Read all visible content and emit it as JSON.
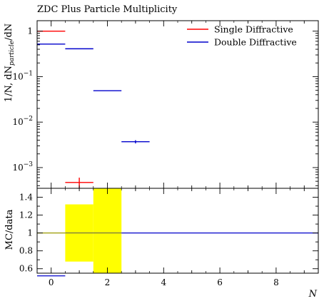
{
  "chart_data": [
    {
      "type": "line",
      "panel": "main",
      "title": "ZDC Plus Particle Multiplicity",
      "ylabel_parts": {
        "pre": "1/N, dN",
        "sub": "particle",
        "post": "/dN"
      },
      "ylabel": "1/N, dN_particle/dN",
      "y_scale": "log",
      "ylim": [
        0.00035,
        1.7
      ],
      "xlim": [
        -0.5,
        9.5
      ],
      "y_ticks": [
        1,
        0.1,
        0.01,
        0.001
      ],
      "y_tick_labels": [
        {
          "base": "1",
          "exp": ""
        },
        {
          "base": "10",
          "exp": "−1"
        },
        {
          "base": "10",
          "exp": "−2"
        },
        {
          "base": "10",
          "exp": "−3"
        }
      ],
      "legend_position": "top-right",
      "series": [
        {
          "name": "Single Diffractive",
          "color": "#ff0000",
          "points": [
            {
              "x": 0,
              "xlow": -0.5,
              "xhigh": 0.5,
              "y": 1.0,
              "err": 0
            },
            {
              "x": 1,
              "xlow": 0.5,
              "xhigh": 1.5,
              "y": 0.00047,
              "err": 0.00013
            }
          ]
        },
        {
          "name": "Double Diffractive",
          "color": "#0000cc",
          "points": [
            {
              "x": 0,
              "xlow": -0.5,
              "xhigh": 0.5,
              "y": 0.52,
              "err": 0
            },
            {
              "x": 1,
              "xlow": 0.5,
              "xhigh": 1.5,
              "y": 0.41,
              "err": 0
            },
            {
              "x": 2,
              "xlow": 1.5,
              "xhigh": 2.5,
              "y": 0.049,
              "err": 0
            },
            {
              "x": 3,
              "xlow": 2.5,
              "xhigh": 3.5,
              "y": 0.0037,
              "err": 0.0003
            }
          ]
        }
      ]
    },
    {
      "type": "line",
      "panel": "ratio",
      "ylabel": "MC/data",
      "xlabel": "N",
      "ylim": [
        0.55,
        1.5
      ],
      "xlim": [
        -0.5,
        9.5
      ],
      "y_ticks": [
        0.6,
        0.8,
        1.0,
        1.2,
        1.4
      ],
      "y_tick_labels": [
        "0.6",
        "0.8",
        "1",
        "1.2",
        "1.4"
      ],
      "x_ticks": [
        0,
        2,
        4,
        6,
        8
      ],
      "x_tick_labels": [
        "0",
        "2",
        "4",
        "6",
        "8"
      ],
      "reference_line": 1.0,
      "uncertainty_band": {
        "color": "#ffff00",
        "bins": [
          {
            "xlow": -0.5,
            "xhigh": 0.5,
            "low": 1.0,
            "high": 1.0
          },
          {
            "xlow": 0.5,
            "xhigh": 1.5,
            "low": 0.68,
            "high": 1.32
          },
          {
            "xlow": 1.5,
            "xhigh": 2.5,
            "low": 0.55,
            "high": 1.5
          }
        ]
      },
      "series": [
        {
          "name": "Double Diffractive",
          "color": "#0000cc",
          "points": [
            {
              "xlow": -0.5,
              "xhigh": 0.5,
              "y": 0.52
            },
            {
              "xlow": 2.5,
              "xhigh": 9.5,
              "y": 1.0
            }
          ]
        }
      ]
    }
  ]
}
